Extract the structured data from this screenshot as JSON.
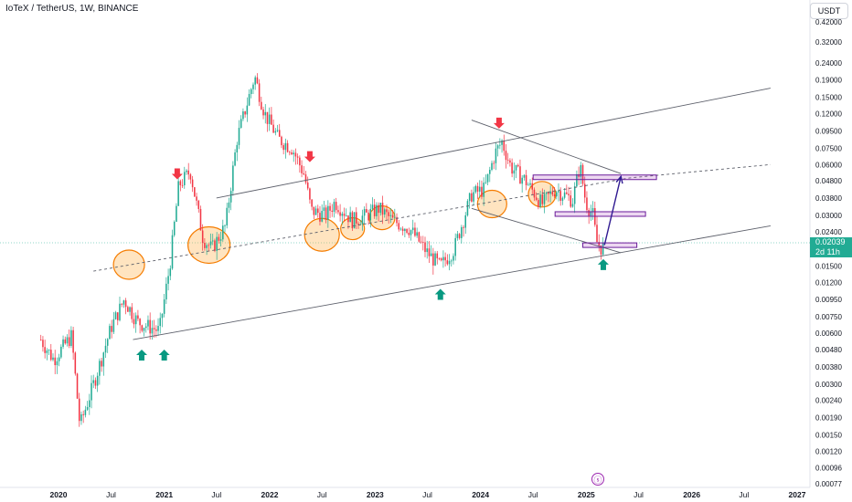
{
  "header": {
    "symbol": "IoTeX / TetherUS, 1W, BINANCE"
  },
  "toolbar": {
    "currency": "USDT"
  },
  "last_price": {
    "value": "0.02039",
    "countdown": "2d 11h"
  },
  "colors": {
    "up": "#22ab94",
    "down": "#f23645",
    "accent_purple": "#9c27b0",
    "orange": "#f57c00"
  },
  "chart_data": {
    "type": "candlestick",
    "title": "IoTeX / TetherUS, 1W, BINANCE",
    "y_scale": "log",
    "y_ticks": [
      "0.42000",
      "0.32000",
      "0.24000",
      "0.19000",
      "0.15000",
      "0.12000",
      "0.09500",
      "0.07500",
      "0.06000",
      "0.04800",
      "0.03800",
      "0.03000",
      "0.02400",
      "0.01900",
      "0.01500",
      "0.01200",
      "0.00950",
      "0.00750",
      "0.00600",
      "0.00480",
      "0.00380",
      "0.00300",
      "0.00240",
      "0.00190",
      "0.00150",
      "0.00120",
      "0.00096",
      "0.00077"
    ],
    "x_ticks": [
      "2020",
      "Jul",
      "2021",
      "Jul",
      "2022",
      "Jul",
      "2023",
      "Jul",
      "2024",
      "Jul",
      "2025",
      "Jul",
      "2026",
      "Jul",
      "2027"
    ],
    "last_price": 0.02039,
    "price_series": [
      [
        "2019-11-01",
        0.0055
      ],
      [
        "2019-12-15",
        0.0042
      ],
      [
        "2020-02-15",
        0.0058
      ],
      [
        "2020-03-15",
        0.0017
      ],
      [
        "2020-05-01",
        0.003
      ],
      [
        "2020-07-01",
        0.0065
      ],
      [
        "2020-08-15",
        0.0095
      ],
      [
        "2020-10-01",
        0.007
      ],
      [
        "2020-12-15",
        0.0062
      ],
      [
        "2021-01-20",
        0.015
      ],
      [
        "2021-02-20",
        0.045
      ],
      [
        "2021-04-01",
        0.055
      ],
      [
        "2021-05-15",
        0.022
      ],
      [
        "2021-06-15",
        0.019
      ],
      [
        "2021-08-01",
        0.026
      ],
      [
        "2021-09-10",
        0.085
      ],
      [
        "2021-11-10",
        0.2
      ],
      [
        "2021-12-15",
        0.12
      ],
      [
        "2022-02-01",
        0.085
      ],
      [
        "2022-03-20",
        0.075
      ],
      [
        "2022-05-01",
        0.052
      ],
      [
        "2022-05-25",
        0.032
      ],
      [
        "2022-07-15",
        0.03
      ],
      [
        "2022-08-15",
        0.036
      ],
      [
        "2022-10-15",
        0.028
      ],
      [
        "2022-12-01",
        0.03
      ],
      [
        "2023-01-15",
        0.033
      ],
      [
        "2023-03-01",
        0.028
      ],
      [
        "2023-05-01",
        0.025
      ],
      [
        "2023-07-01",
        0.018
      ],
      [
        "2023-08-15",
        0.015
      ],
      [
        "2023-10-01",
        0.019
      ],
      [
        "2023-12-01",
        0.04
      ],
      [
        "2024-01-15",
        0.043
      ],
      [
        "2024-02-20",
        0.07
      ],
      [
        "2024-03-15",
        0.082
      ],
      [
        "2024-04-15",
        0.058
      ],
      [
        "2024-06-01",
        0.049
      ],
      [
        "2024-08-01",
        0.035
      ],
      [
        "2024-09-15",
        0.043
      ],
      [
        "2024-11-15",
        0.037
      ],
      [
        "2024-12-10",
        0.06
      ],
      [
        "2024-12-30",
        0.036
      ],
      [
        "2025-01-25",
        0.03
      ],
      [
        "2025-02-05",
        0.021
      ],
      [
        "2025-02-25",
        0.019
      ],
      [
        "2025-03-05",
        0.02039
      ]
    ],
    "channel_lines": [
      [
        [
          "2020-09-15",
          0.0055
        ],
        [
          "2026-10-01",
          0.026
        ]
      ],
      [
        [
          "2020-05-01",
          0.014
        ],
        [
          "2025-06-01",
          0.05
        ],
        [
          "2026-10-01",
          0.06
        ]
      ],
      [
        [
          "2021-07-01",
          0.038
        ],
        [
          "2026-10-01",
          0.17
        ]
      ],
      [
        [
          "2023-12-01",
          0.11
        ],
        [
          "2025-05-01",
          0.053
        ]
      ],
      [
        [
          "2023-12-01",
          0.033
        ],
        [
          "2025-05-01",
          0.018
        ]
      ]
    ],
    "projection": [
      [
        "2025-03-05",
        0.02
      ],
      [
        "2025-05-01",
        0.051
      ]
    ],
    "zones": [
      {
        "from": "2024-07-01",
        "to": "2025-09-01",
        "low": 0.049,
        "high": 0.052
      },
      {
        "from": "2024-09-15",
        "to": "2025-07-25",
        "low": 0.0299,
        "high": 0.0315
      },
      {
        "from": "2024-12-20",
        "to": "2025-06-25",
        "low": 0.0197,
        "high": 0.0206
      }
    ],
    "ellipses": [
      [
        "2020-09-01",
        0.0153
      ],
      [
        "2021-06-05",
        0.02
      ],
      [
        "2022-07-01",
        0.023
      ],
      [
        "2022-10-15",
        0.025
      ],
      [
        "2023-01-25",
        0.029
      ],
      [
        "2024-02-10",
        0.035
      ],
      [
        "2024-08-01",
        0.04
      ]
    ],
    "down_arrows": [
      [
        "2021-02-15",
        0.049
      ],
      [
        "2022-05-20",
        0.062
      ],
      [
        "2024-03-05",
        0.098
      ]
    ],
    "up_arrows": [
      [
        "2020-10-15",
        0.0048
      ],
      [
        "2021-01-01",
        0.0048
      ],
      [
        "2023-08-15",
        0.011
      ],
      [
        "2025-03-01",
        0.0165
      ]
    ]
  }
}
